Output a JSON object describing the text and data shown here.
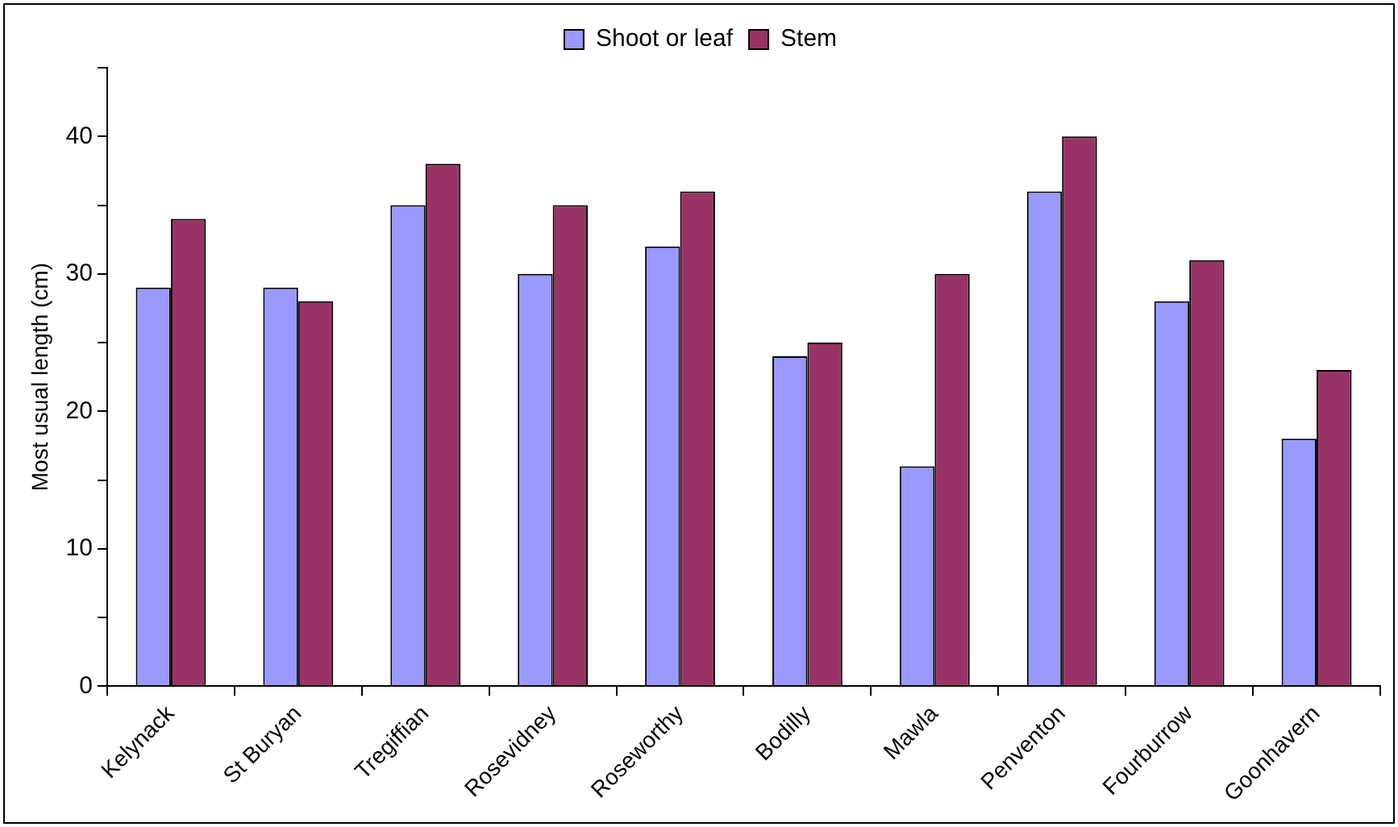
{
  "chart_data": {
    "type": "bar",
    "ylabel": "Most usual length (cm)",
    "categories": [
      "Kelynack",
      "St Buryan",
      "Tregiffian",
      "Rosevidney",
      "Roseworthy",
      "Bodilly",
      "Mawla",
      "Penventon",
      "Fourburrow",
      "Goonhavern"
    ],
    "series": [
      {
        "name": "Shoot or leaf",
        "color": "#9999ff",
        "values": [
          29,
          29,
          35,
          30,
          32,
          24,
          16,
          36,
          28,
          18
        ]
      },
      {
        "name": "Stem",
        "color": "#993366",
        "values": [
          34,
          28,
          38,
          35,
          36,
          25,
          30,
          40,
          31,
          23
        ]
      }
    ],
    "ylim": [
      0,
      45
    ],
    "yticks": [
      0,
      {
        "value": 5,
        "label": null
      },
      10,
      {
        "value": 15,
        "label": null
      },
      20,
      {
        "value": 25,
        "label": null
      },
      30,
      {
        "value": 35,
        "label": null
      },
      40,
      {
        "value": 45,
        "label": null
      }
    ],
    "grid": false,
    "legend": "top"
  }
}
